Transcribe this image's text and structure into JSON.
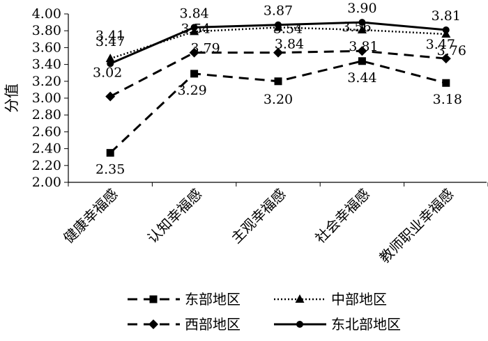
{
  "chart_data": {
    "type": "line",
    "ylabel": "分值",
    "ylim": [
      2.0,
      4.0
    ],
    "ytick_step": 0.2,
    "yticks": [
      "2.00",
      "2.20",
      "2.40",
      "2.60",
      "2.80",
      "3.00",
      "3.20",
      "3.40",
      "3.60",
      "3.80",
      "4.00"
    ],
    "categories": [
      "健康幸福感",
      "认知幸福感",
      "主观幸福感",
      "社会幸福感",
      "教师职业幸福感"
    ],
    "grid": false,
    "legend_position": "bottom",
    "series": [
      {
        "name": "东部地区",
        "values": [
          2.35,
          3.29,
          3.2,
          3.44,
          3.18
        ],
        "labels": [
          "2.35",
          "3.29",
          "3.20",
          "3.44",
          "3.18"
        ],
        "style": "dashed",
        "marker": "square"
      },
      {
        "name": "中部地区",
        "values": [
          3.47,
          3.79,
          3.84,
          3.81,
          3.76
        ],
        "labels": [
          "3.47",
          "3.79",
          "3.84",
          "3.81",
          "3.76"
        ],
        "style": "dotted",
        "marker": "triangle"
      },
      {
        "name": "西部地区",
        "values": [
          3.02,
          3.54,
          3.54,
          3.56,
          3.47
        ],
        "labels": [
          "3.02",
          "3.54",
          "3.54",
          "3.56",
          "3.47"
        ],
        "style": "dashed",
        "marker": "diamond"
      },
      {
        "name": "东北部地区",
        "values": [
          3.41,
          3.84,
          3.87,
          3.9,
          3.81
        ],
        "labels": [
          "3.41",
          "3.84",
          "3.87",
          "3.90",
          "3.81"
        ],
        "style": "solid",
        "marker": "circle"
      }
    ],
    "colors": {
      "line": "#000000",
      "background": "#ffffff"
    }
  }
}
